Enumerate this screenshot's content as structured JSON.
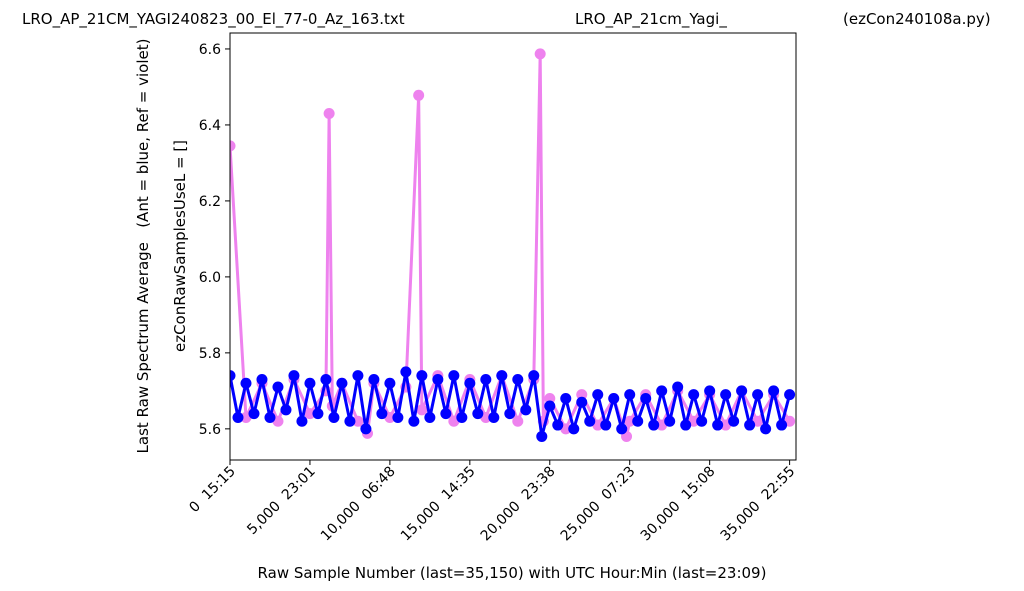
{
  "chart_data": {
    "type": "scatter",
    "titles": [
      "LRO_AP_21CM_YAGI240823_00_El_77-0_Az_163.txt",
      "LRO_AP_21cm_Yagi_",
      "(ezCon240108a.py)"
    ],
    "xlabel": "Raw Sample Number (last=35,150) with UTC Hour:Min (last=23:09)",
    "ylabel": [
      "Last Raw Spectrum Average   (Ant = blue, Ref = violet)",
      "ezConRawSamplesUseL = []"
    ],
    "xlim": [
      0,
      35400
    ],
    "ylim": [
      5.518,
      6.642
    ],
    "xticks": [
      {
        "value": 0,
        "label": "0  15:15"
      },
      {
        "value": 5000,
        "label": "5,000  23:01"
      },
      {
        "value": 10000,
        "label": "10,000  06:48"
      },
      {
        "value": 15000,
        "label": "15,000  14:35"
      },
      {
        "value": 20000,
        "label": "20,000  23:38"
      },
      {
        "value": 25000,
        "label": "25,000  07:23"
      },
      {
        "value": 30000,
        "label": "30,000  15:08"
      },
      {
        "value": 35000,
        "label": "35,000  22:55"
      }
    ],
    "yticks": [
      5.6,
      5.8,
      {
        "value": 6.0,
        "label": "6.0"
      },
      6.2,
      6.4,
      6.6
    ],
    "series": [
      {
        "color": "#ee82ee",
        "x": [
          0,
          1000,
          2000,
          3000,
          4000,
          5000,
          6000,
          6200,
          6400,
          7000,
          8000,
          8600,
          9000,
          10000,
          11000,
          11800,
          12000,
          13000,
          14000,
          15000,
          16000,
          17000,
          18000,
          19000,
          19400,
          19600,
          20000,
          21000,
          22000,
          23000,
          24000,
          24800,
          25000,
          26000,
          27000,
          28000,
          29000,
          30000,
          31000,
          32000,
          33000,
          34000,
          35000
        ],
        "values": [
          6.345,
          5.63,
          5.72,
          5.62,
          5.73,
          5.64,
          5.7,
          6.43,
          5.66,
          5.72,
          5.62,
          5.588,
          5.72,
          5.63,
          5.71,
          6.478,
          5.65,
          5.74,
          5.62,
          5.73,
          5.63,
          5.74,
          5.62,
          5.73,
          6.587,
          5.62,
          5.68,
          5.6,
          5.69,
          5.61,
          5.68,
          5.58,
          5.62,
          5.69,
          5.61,
          5.7,
          5.62,
          5.69,
          5.61,
          5.7,
          5.62,
          5.69,
          5.62
        ]
      },
      {
        "color": "#0000ff",
        "x": [
          0,
          500,
          1000,
          1500,
          2000,
          2500,
          3000,
          3500,
          4000,
          4500,
          5000,
          5500,
          6000,
          6500,
          7000,
          7500,
          8000,
          8500,
          9000,
          9500,
          10000,
          10500,
          11000,
          11500,
          12000,
          12500,
          13000,
          13500,
          14000,
          14500,
          15000,
          15500,
          16000,
          16500,
          17000,
          17500,
          18000,
          18500,
          19000,
          19500,
          20000,
          20500,
          21000,
          21500,
          22000,
          22500,
          23000,
          23500,
          24000,
          24500,
          25000,
          25500,
          26000,
          26500,
          27000,
          27500,
          28000,
          28500,
          29000,
          29500,
          30000,
          30500,
          31000,
          31500,
          32000,
          32500,
          33000,
          33500,
          34000,
          34500,
          35000
        ],
        "values": [
          5.74,
          5.63,
          5.72,
          5.64,
          5.73,
          5.63,
          5.71,
          5.65,
          5.74,
          5.62,
          5.72,
          5.64,
          5.73,
          5.63,
          5.72,
          5.62,
          5.74,
          5.6,
          5.73,
          5.64,
          5.72,
          5.63,
          5.75,
          5.62,
          5.74,
          5.63,
          5.73,
          5.64,
          5.74,
          5.63,
          5.72,
          5.64,
          5.73,
          5.63,
          5.74,
          5.64,
          5.73,
          5.65,
          5.74,
          5.58,
          5.66,
          5.61,
          5.68,
          5.6,
          5.67,
          5.62,
          5.69,
          5.61,
          5.68,
          5.6,
          5.69,
          5.62,
          5.68,
          5.61,
          5.7,
          5.62,
          5.71,
          5.61,
          5.69,
          5.62,
          5.7,
          5.61,
          5.69,
          5.62,
          5.7,
          5.61,
          5.69,
          5.6,
          5.7,
          5.61,
          5.69
        ]
      }
    ]
  }
}
